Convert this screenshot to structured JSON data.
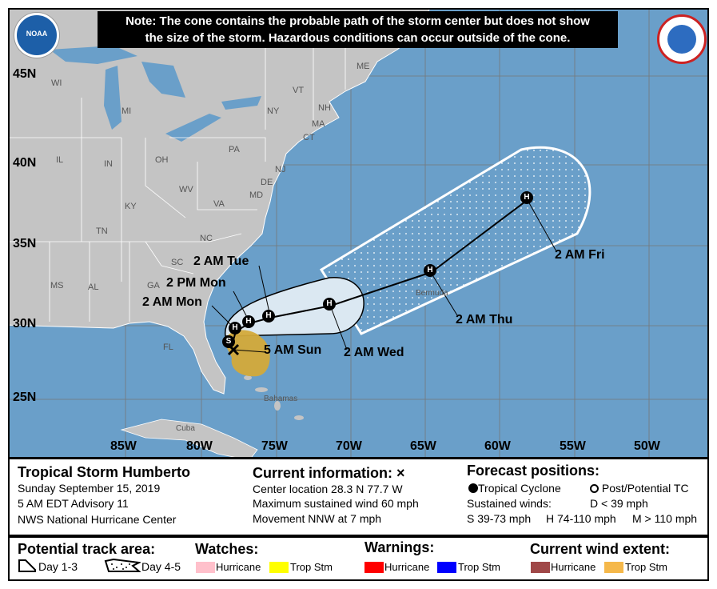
{
  "note": {
    "line1": "Note: The cone contains the probable path of the storm center but does not show",
    "line2": "the size of the storm. Hazardous conditions can occur outside of the cone."
  },
  "logos": {
    "left": "NOAA",
    "right": "NATIONAL WEATHER SERVICE"
  },
  "latitudes": [
    "45N",
    "40N",
    "35N",
    "30N",
    "25N"
  ],
  "longitudes": [
    "85W",
    "80W",
    "75W",
    "70W",
    "65W",
    "60W",
    "55W",
    "50W"
  ],
  "states": [
    "WI",
    "MI",
    "NY",
    "VT",
    "NH",
    "ME",
    "MA",
    "CT",
    "PA",
    "OH",
    "IN",
    "IL",
    "WV",
    "VA",
    "KY",
    "TN",
    "NC",
    "SC",
    "GA",
    "AL",
    "MS",
    "FL",
    "NJ",
    "DE",
    "MD"
  ],
  "places": {
    "bermuda": "Bermuda",
    "bahamas": "Bahamas",
    "cuba": "Cuba"
  },
  "forecast_labels": [
    "5 AM Sun",
    "2 AM Mon",
    "2 PM Mon",
    "2 AM Tue",
    "2 AM Wed",
    "2 AM Thu",
    "2 AM Fri"
  ],
  "point_codes": {
    "current": "S",
    "forecast": "H"
  },
  "info": {
    "storm": "Tropical Storm Humberto",
    "date": "Sunday September 15, 2019",
    "advisory": "5 AM EDT Advisory 11",
    "center": "NWS National Hurricane Center",
    "current_title": "Current information:",
    "current_mark": "×",
    "location": "Center location 28.3 N 77.7 W",
    "wind": "Maximum sustained wind 60 mph",
    "movement": "Movement NNW at 7 mph",
    "forecast_title": "Forecast positions:",
    "tc": "Tropical Cyclone",
    "ptc": "Post/Potential TC",
    "sustained": "Sustained winds:",
    "d": "D < 39 mph",
    "s": "S 39-73 mph",
    "hh": "H 74-110 mph",
    "m": "M > 110 mph"
  },
  "legend": {
    "track": "Potential track area:",
    "day13": "Day 1-3",
    "day45": "Day 4-5",
    "watches": "Watches:",
    "warnings": "Warnings:",
    "wind": "Current wind extent:",
    "hurricane": "Hurricane",
    "tropstm": "Trop Stm",
    "colors": {
      "watch_hurricane": "#ffc0cb",
      "watch_trop": "#ffff00",
      "warn_hurricane": "#ff0000",
      "warn_trop": "#0000ff",
      "wind_hurricane": "#a04848",
      "wind_trop": "#f5b84a",
      "ocean": "#6a9fc9",
      "land": "#c4c4c4"
    }
  }
}
